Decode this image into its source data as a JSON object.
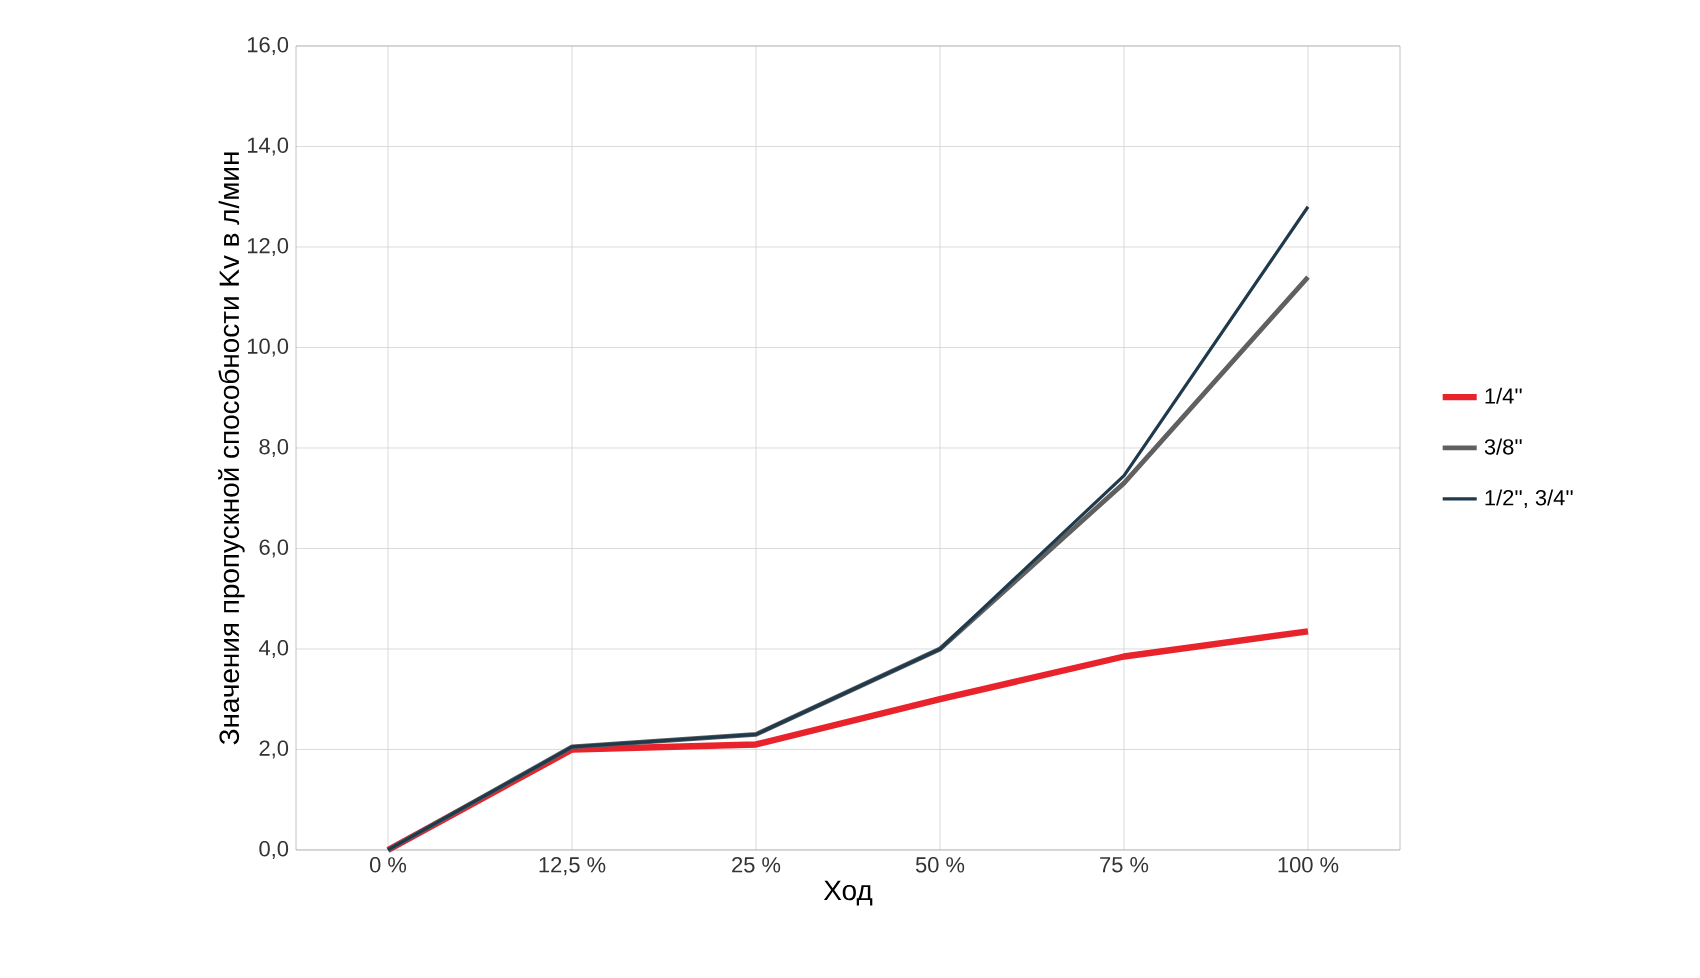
{
  "chart_data": {
    "type": "line",
    "xlabel": "Ход",
    "ylabel": "Значения пропускной способности Kv в л/мин",
    "categories": [
      "0 %",
      "12,5 %",
      "25 %",
      "50 %",
      "75 %",
      "100 %"
    ],
    "series": [
      {
        "name": "1/4''",
        "color": "#e8232c",
        "values": [
          0,
          2.0,
          2.1,
          3.0,
          3.85,
          4.35
        ]
      },
      {
        "name": "3/8''",
        "color": "#606060",
        "values": [
          0,
          2.05,
          2.3,
          4.0,
          7.3,
          11.4
        ]
      },
      {
        "name": "1/2'', 3/4''",
        "color": "#1f3a4d",
        "values": [
          0,
          2.05,
          2.3,
          4.0,
          7.45,
          12.8
        ]
      }
    ],
    "ylim": [
      0,
      16
    ],
    "yticks": [
      {
        "value": 0,
        "label": "0,0"
      },
      {
        "value": 2,
        "label": "2,0"
      },
      {
        "value": 4,
        "label": "4,0"
      },
      {
        "value": 6,
        "label": "6,0"
      },
      {
        "value": 8,
        "label": "8,0"
      },
      {
        "value": 10,
        "label": "10,0"
      },
      {
        "value": 12,
        "label": "12,0"
      },
      {
        "value": 14,
        "label": "14,0"
      },
      {
        "value": 16,
        "label": "16,0"
      }
    ],
    "grid": true,
    "legend": "right",
    "marker": "none",
    "line_style": "solid"
  }
}
